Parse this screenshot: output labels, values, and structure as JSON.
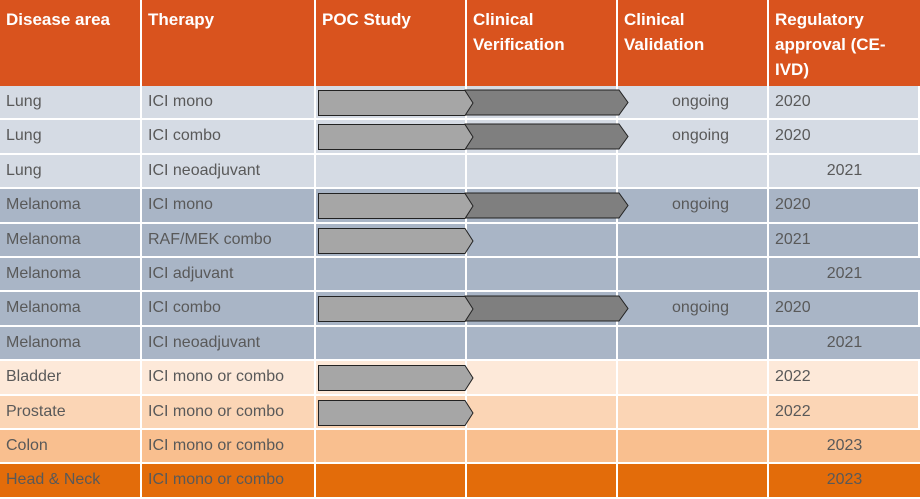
{
  "headers": [
    "Disease area",
    "Therapy",
    "POC Study",
    "Clinical Verification",
    "Clinical Validation",
    "Regulatory approval (CE-IVD)"
  ],
  "colors": {
    "header": "#d9531e",
    "lung": "#d5dbe4",
    "melanoma": "#a9b5c6",
    "bladder": "#fde9d9",
    "prostate": "#fbd5b5",
    "colon": "#f9bf8f",
    "head_neck": "#e36c0a",
    "poc_arrow": "#a6a6a6",
    "verification_arrow": "#7f7f7f"
  },
  "rows": [
    {
      "disease": "Lung",
      "therapy": "ICI mono",
      "poc": true,
      "verification": true,
      "validation": "ongoing",
      "approval": "2020",
      "color": "#d5dbe4"
    },
    {
      "disease": "Lung",
      "therapy": "ICI combo",
      "poc": true,
      "verification": true,
      "validation": "ongoing",
      "approval": "2020",
      "color": "#d5dbe4"
    },
    {
      "disease": "Lung",
      "therapy": "ICI neoadjuvant",
      "poc": false,
      "verification": false,
      "validation": "",
      "approval": "2021",
      "color": "#d5dbe4"
    },
    {
      "disease": "Melanoma",
      "therapy": "ICI mono",
      "poc": true,
      "verification": true,
      "validation": "ongoing",
      "approval": "2020",
      "color": "#a9b5c6"
    },
    {
      "disease": "Melanoma",
      "therapy": "RAF/MEK combo",
      "poc": true,
      "verification": false,
      "validation": "",
      "approval": "2021",
      "color": "#a9b5c6"
    },
    {
      "disease": "Melanoma",
      "therapy": "ICI adjuvant",
      "poc": false,
      "verification": false,
      "validation": "",
      "approval": "2021",
      "color": "#a9b5c6"
    },
    {
      "disease": "Melanoma",
      "therapy": "ICI combo",
      "poc": true,
      "verification": true,
      "validation": "ongoing",
      "approval": "2020",
      "color": "#a9b5c6"
    },
    {
      "disease": "Melanoma",
      "therapy": "ICI neoadjuvant",
      "poc": false,
      "verification": false,
      "validation": "",
      "approval": "2021",
      "color": "#a9b5c6"
    },
    {
      "disease": "Bladder",
      "therapy": "ICI mono or combo",
      "poc": true,
      "verification": false,
      "validation": "",
      "approval": "2022",
      "color": "#fde9d9"
    },
    {
      "disease": "Prostate",
      "therapy": "ICI mono or combo",
      "poc": true,
      "verification": false,
      "validation": "",
      "approval": "2022",
      "color": "#fbd5b5"
    },
    {
      "disease": "Colon",
      "therapy": "ICI mono or combo",
      "poc": false,
      "verification": false,
      "validation": "",
      "approval": "2023",
      "color": "#f9bf8f"
    },
    {
      "disease": "Head & Neck",
      "therapy": "ICI mono or combo",
      "poc": false,
      "verification": false,
      "validation": "",
      "approval": "2023",
      "color": "#e36c0a"
    }
  ]
}
